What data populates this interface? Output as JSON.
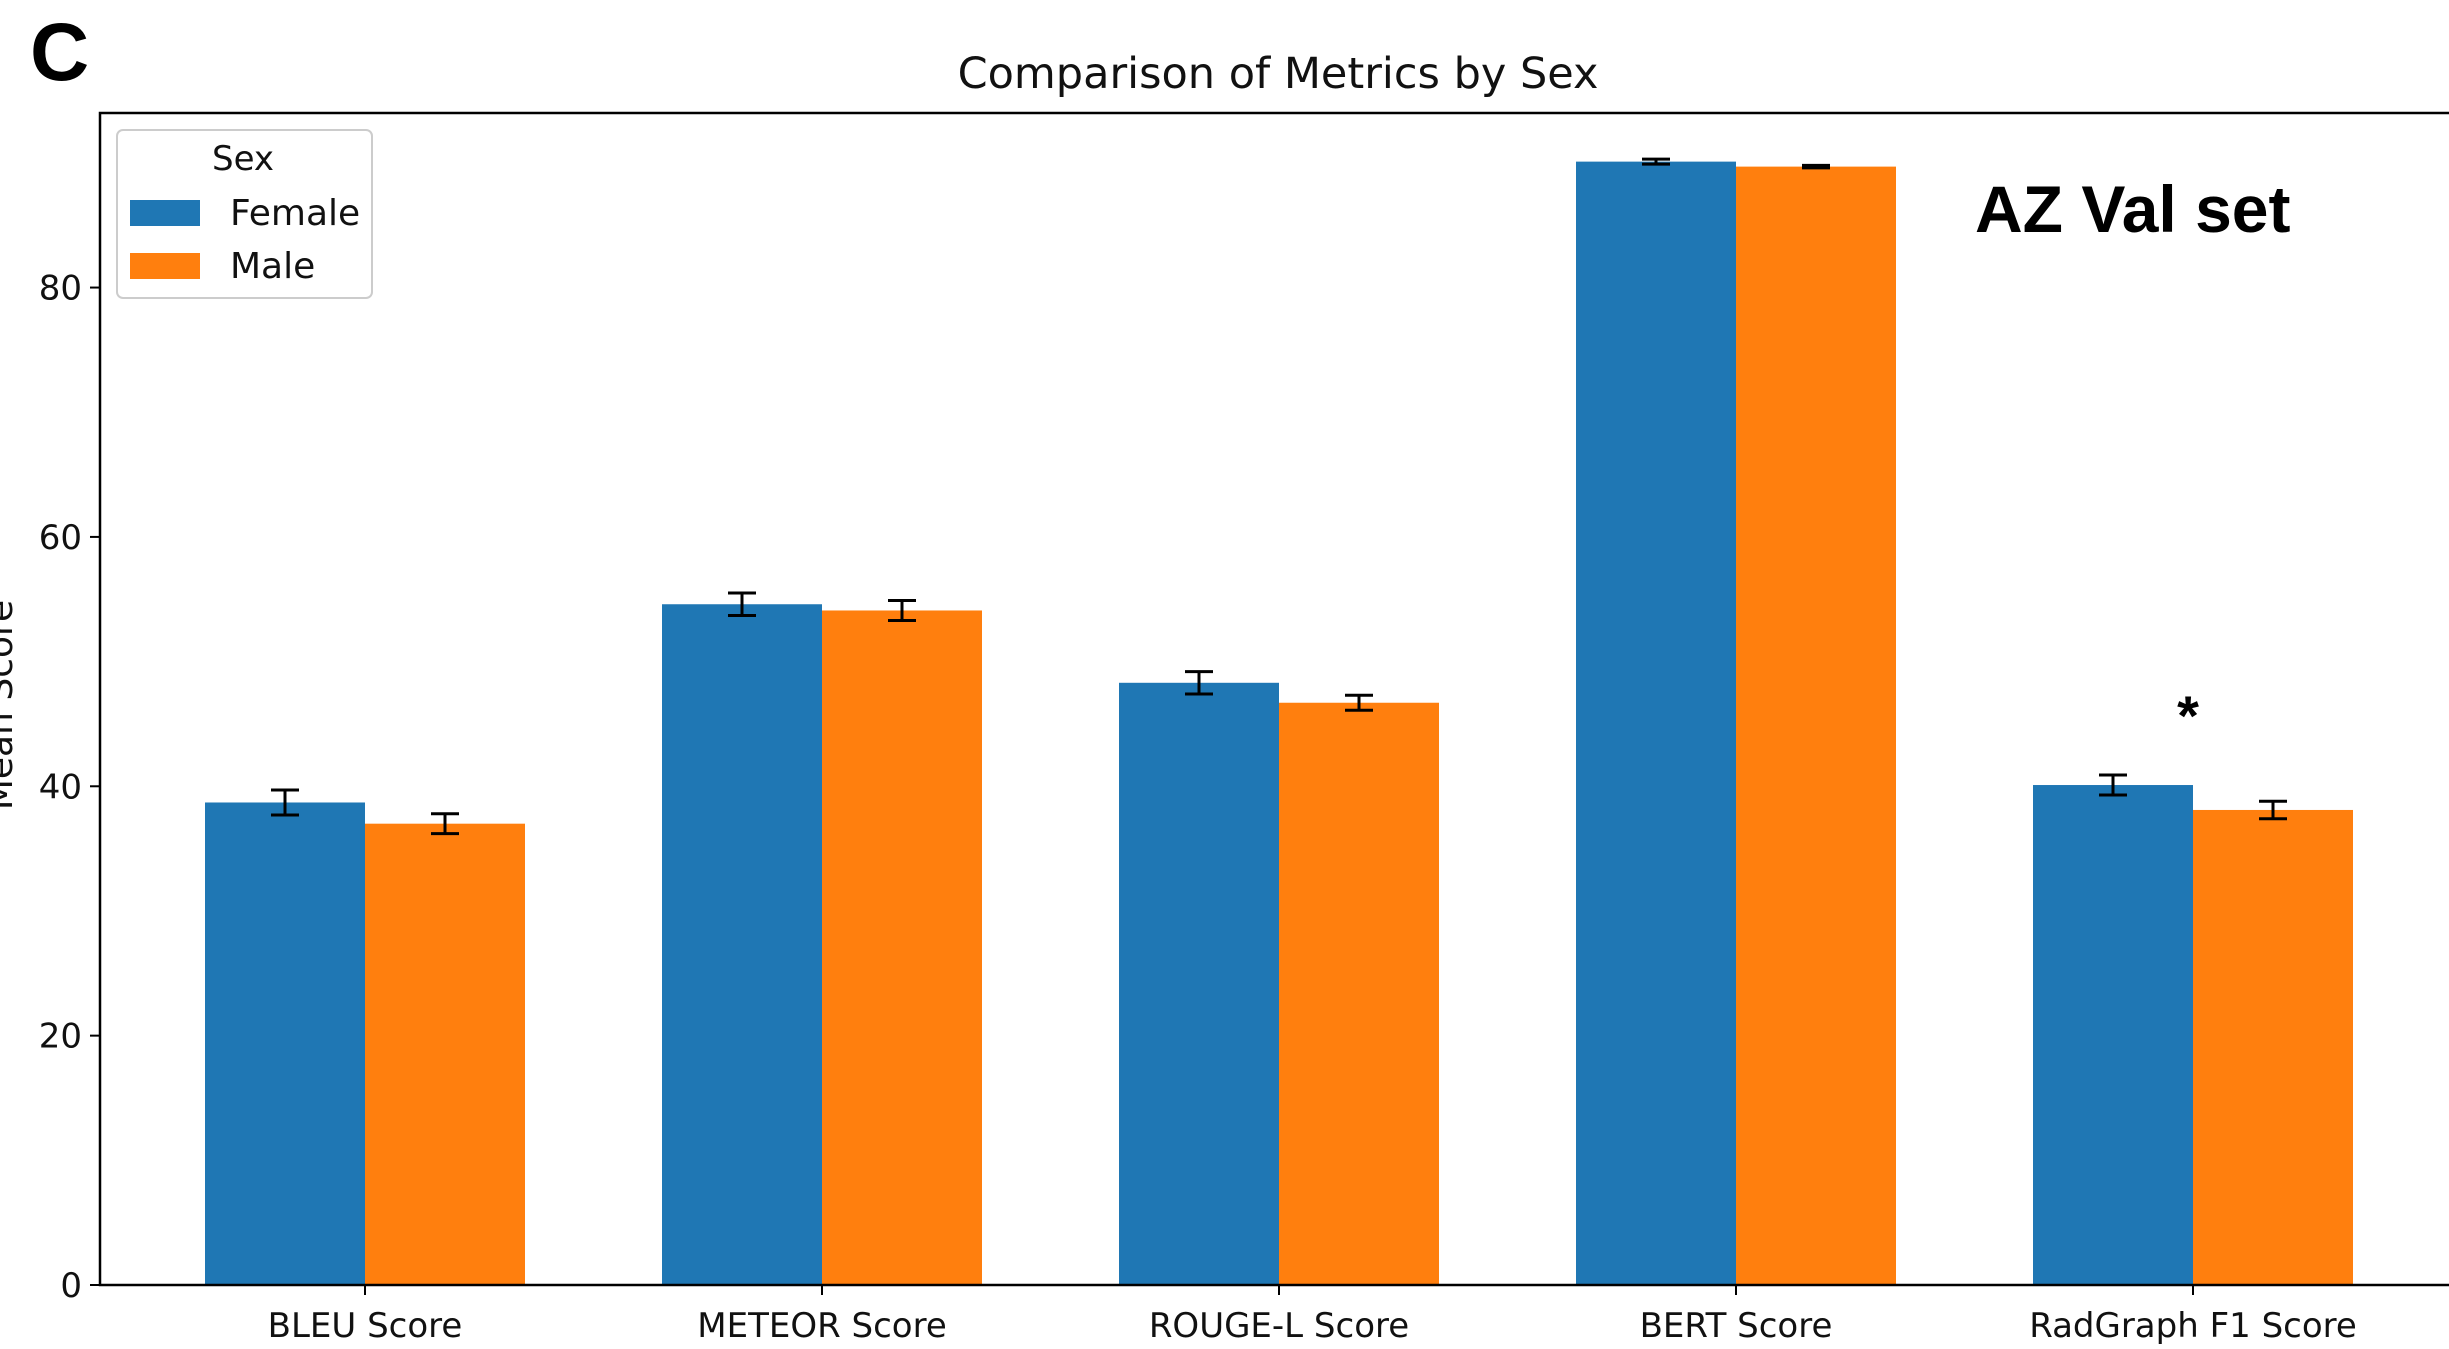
{
  "panel_label": "C",
  "annotation": "AZ Val set",
  "significance_marker": "*",
  "colors": {
    "Female": "#1f77b4",
    "Male": "#ff7f0e"
  },
  "chart_data": {
    "type": "bar",
    "title": "Comparison of Metrics by Sex",
    "xlabel": "",
    "ylabel": "Mean Score",
    "ylim": [
      0,
      94
    ],
    "yticks": [
      0,
      20,
      40,
      60,
      80
    ],
    "grid": false,
    "legend": {
      "title": "Sex",
      "placement": "top-left"
    },
    "categories": [
      "BLEU Score",
      "METEOR Score",
      "ROUGE-L Score",
      "BERT Score",
      "RadGraph F1 Score"
    ],
    "series": [
      {
        "name": "Female",
        "values": [
          38.7,
          54.6,
          48.3,
          90.1,
          40.1
        ],
        "errors": [
          1.0,
          0.9,
          0.9,
          0.2,
          0.8
        ]
      },
      {
        "name": "Male",
        "values": [
          37.0,
          54.1,
          46.7,
          89.7,
          38.1
        ],
        "errors": [
          0.8,
          0.8,
          0.6,
          0.1,
          0.7
        ]
      }
    ],
    "significant_categories": [
      "RadGraph F1 Score"
    ]
  }
}
